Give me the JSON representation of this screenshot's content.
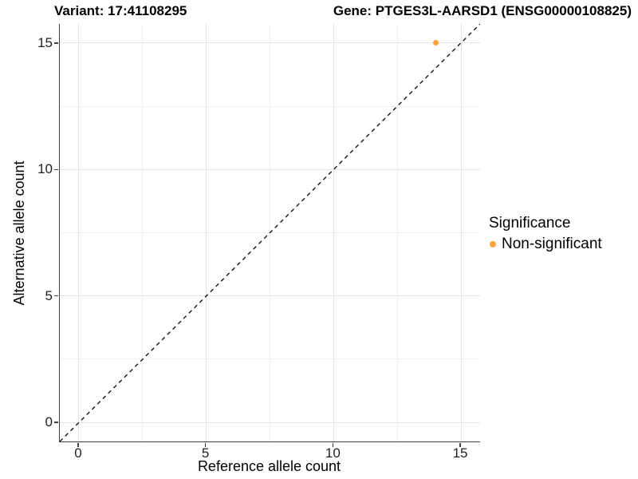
{
  "titles": {
    "variant": "Variant: 17:41108295",
    "gene": "Gene: PTGES3L-AARSD1 (ENSG00000108825)"
  },
  "axes": {
    "x_label": "Reference allele count",
    "y_label": "Alternative allele count",
    "x_tick_labels": [
      "0",
      "5",
      "10",
      "15"
    ],
    "y_tick_labels": [
      "0",
      "5",
      "10",
      "15"
    ]
  },
  "legend": {
    "title": "Significance",
    "position": "right",
    "items": [
      {
        "label": "Non-significant",
        "color": "#F8A53D"
      }
    ]
  },
  "colors": {
    "point_orange": "#F8A53D",
    "grid_major": "#e3e3e3",
    "grid_minor": "#f0f0f0",
    "axis_line": "#3f3f3f",
    "reference_line": "#141414"
  },
  "chart_data": {
    "type": "scatter",
    "title": "Variant: 17:41108295 / Gene: PTGES3L-AARSD1 (ENSG00000108825)",
    "xlabel": "Reference allele count",
    "ylabel": "Alternative allele count",
    "xlim": [
      -0.75,
      15.75
    ],
    "ylim": [
      -0.75,
      15.75
    ],
    "x_ticks": [
      0,
      5,
      10,
      15
    ],
    "y_ticks": [
      0,
      5,
      10,
      15
    ],
    "x_minor_ticks": [
      2.5,
      7.5,
      12.5
    ],
    "y_minor_ticks": [
      2.5,
      7.5,
      12.5
    ],
    "grid": true,
    "legend_position": "right",
    "reference_line": {
      "type": "identity",
      "slope": 1,
      "intercept": 0,
      "style": "dashed",
      "color": "#141414"
    },
    "series": [
      {
        "name": "Non-significant",
        "color": "#F8A53D",
        "point_size": 7,
        "points": [
          {
            "x": 14,
            "y": 15
          }
        ]
      }
    ]
  }
}
